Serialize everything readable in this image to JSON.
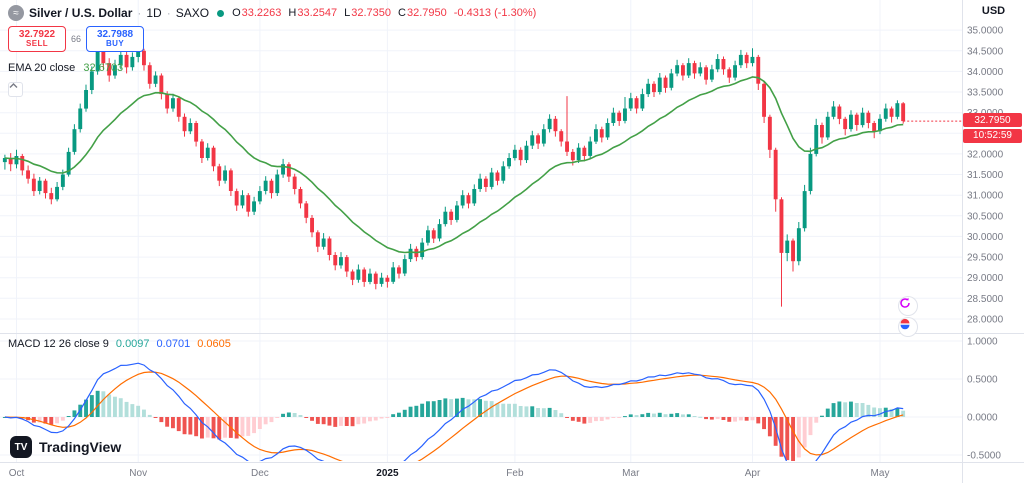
{
  "header": {
    "symbol_title": "Silver / U.S. Dollar",
    "separator": "·",
    "timeframe": "1D",
    "exchange": "SAXO",
    "logo_glyph": "≈",
    "ohlc": {
      "o_label": "O",
      "o": "33.2263",
      "h_label": "H",
      "h": "33.2547",
      "l_label": "L",
      "l": "32.7350",
      "c_label": "C",
      "c": "32.7950",
      "change": "-0.4313 (-1.30%)"
    },
    "currency": "USD"
  },
  "trade_panel": {
    "sell_price": "32.7922",
    "sell_label": "SELL",
    "spread": "66",
    "buy_price": "32.7988",
    "buy_label": "BUY"
  },
  "ema_legend": {
    "name": "EMA 20 close",
    "value": "32.6703"
  },
  "macd_legend": {
    "name": "MACD 12 26 close 9",
    "hist_value": "0.0097",
    "macd_value": "0.0701",
    "signal_value": "0.0605"
  },
  "price_scale": {
    "ticks": [
      {
        "v": 35.0,
        "label": "35.0000"
      },
      {
        "v": 34.5,
        "label": "34.5000"
      },
      {
        "v": 34.0,
        "label": "34.0000"
      },
      {
        "v": 33.5,
        "label": "33.5000"
      },
      {
        "v": 33.0,
        "label": "33.0000"
      },
      {
        "v": 32.5,
        "label": "32.5000"
      },
      {
        "v": 32.0,
        "label": "32.0000"
      },
      {
        "v": 31.5,
        "label": "31.5000"
      },
      {
        "v": 31.0,
        "label": "31.0000"
      },
      {
        "v": 30.5,
        "label": "30.5000"
      },
      {
        "v": 30.0,
        "label": "30.0000"
      },
      {
        "v": 29.5,
        "label": "29.5000"
      },
      {
        "v": 29.0,
        "label": "29.0000"
      },
      {
        "v": 28.5,
        "label": "28.5000"
      },
      {
        "v": 28.0,
        "label": "28.0000"
      }
    ],
    "last_price": "32.7950",
    "countdown": "10:52:59"
  },
  "macd_scale": {
    "ticks": [
      {
        "v": 1.0,
        "label": "1.0000"
      },
      {
        "v": 0.5,
        "label": "0.5000"
      },
      {
        "v": 0.0,
        "label": "0.0000"
      },
      {
        "v": -0.5,
        "label": "-0.5000"
      }
    ]
  },
  "time_axis": {
    "labels": [
      {
        "index": 2,
        "label": "Oct",
        "year": false
      },
      {
        "index": 23,
        "label": "Nov",
        "year": false
      },
      {
        "index": 44,
        "label": "Dec",
        "year": false
      },
      {
        "index": 66,
        "label": "2025",
        "year": true
      },
      {
        "index": 88,
        "label": "Feb",
        "year": false
      },
      {
        "index": 108,
        "label": "Mar",
        "year": false
      },
      {
        "index": 129,
        "label": "Apr",
        "year": false
      },
      {
        "index": 151,
        "label": "May",
        "year": false
      }
    ]
  },
  "logo": {
    "text": "TradingView",
    "mark": "TV"
  },
  "colors": {
    "up": "#089981",
    "down": "#f23645",
    "ema": "#43a047",
    "macd_line": "#2962ff",
    "signal_line": "#ff6d00",
    "hist_pos": "#26a69a",
    "hist_pos_weak": "#b2dfdb",
    "hist_neg": "#ef5350",
    "hist_neg_weak": "#ffcdd2",
    "grid": "#f0f3fa",
    "axis_text": "#787b86",
    "divider": "#e0e3eb",
    "last_price_bg": "#f23645"
  },
  "chart_data": {
    "type": "candlestick",
    "title": "Silver / U.S. Dollar · 1D · SAXO",
    "timeframe": "1D",
    "price_axis_range": [
      27.66,
      35.73
    ],
    "macd_axis_range": [
      -0.592,
      1.105
    ],
    "overlays": [
      {
        "name": "EMA",
        "length": 20
      }
    ],
    "indicator": {
      "type": "MACD",
      "fast": 12,
      "slow": 26,
      "signal": 9
    },
    "candles": [
      [
        31.8,
        31.98,
        31.62,
        31.9
      ],
      [
        31.9,
        32.02,
        31.58,
        31.75
      ],
      [
        31.75,
        32.1,
        31.65,
        31.95
      ],
      [
        31.95,
        32.0,
        31.48,
        31.6
      ],
      [
        31.6,
        31.72,
        31.28,
        31.4
      ],
      [
        31.4,
        31.52,
        30.98,
        31.1
      ],
      [
        31.1,
        31.44,
        31.02,
        31.35
      ],
      [
        31.35,
        31.4,
        30.92,
        31.05
      ],
      [
        31.05,
        31.18,
        30.78,
        30.9
      ],
      [
        30.9,
        31.32,
        30.85,
        31.2
      ],
      [
        31.2,
        31.62,
        31.12,
        31.5
      ],
      [
        31.5,
        32.15,
        31.45,
        32.05
      ],
      [
        32.05,
        32.72,
        31.98,
        32.6
      ],
      [
        32.6,
        33.22,
        32.52,
        33.1
      ],
      [
        33.1,
        33.68,
        33.02,
        33.55
      ],
      [
        33.55,
        34.12,
        33.45,
        34.0
      ],
      [
        34.0,
        34.87,
        33.92,
        34.55
      ],
      [
        34.55,
        34.62,
        34.05,
        34.2
      ],
      [
        34.2,
        34.32,
        33.75,
        33.9
      ],
      [
        33.9,
        34.28,
        33.82,
        34.15
      ],
      [
        34.15,
        34.52,
        34.05,
        34.4
      ],
      [
        34.4,
        34.48,
        33.95,
        34.1
      ],
      [
        34.1,
        34.46,
        34.02,
        34.35
      ],
      [
        34.35,
        34.6,
        34.22,
        34.5
      ],
      [
        34.5,
        34.55,
        34.02,
        34.15
      ],
      [
        34.15,
        34.22,
        33.58,
        33.7
      ],
      [
        33.7,
        34.0,
        33.62,
        33.9
      ],
      [
        33.9,
        33.95,
        33.32,
        33.45
      ],
      [
        33.45,
        33.52,
        32.98,
        33.1
      ],
      [
        33.1,
        33.46,
        33.02,
        33.35
      ],
      [
        33.35,
        33.4,
        32.78,
        32.9
      ],
      [
        32.9,
        32.98,
        32.42,
        32.55
      ],
      [
        32.55,
        32.86,
        32.48,
        32.75
      ],
      [
        32.75,
        32.8,
        32.18,
        32.3
      ],
      [
        32.3,
        32.36,
        31.78,
        31.9
      ],
      [
        31.9,
        32.26,
        31.84,
        32.15
      ],
      [
        32.15,
        32.2,
        31.58,
        31.7
      ],
      [
        31.7,
        31.76,
        31.22,
        31.35
      ],
      [
        31.35,
        31.72,
        31.28,
        31.6
      ],
      [
        31.6,
        31.65,
        30.98,
        31.1
      ],
      [
        31.1,
        31.16,
        30.62,
        30.75
      ],
      [
        30.75,
        31.12,
        30.68,
        31.0
      ],
      [
        31.0,
        31.05,
        30.48,
        30.6
      ],
      [
        30.6,
        30.96,
        30.52,
        30.85
      ],
      [
        30.85,
        31.22,
        30.78,
        31.1
      ],
      [
        31.1,
        31.46,
        31.02,
        31.35
      ],
      [
        31.35,
        31.4,
        30.92,
        31.05
      ],
      [
        31.05,
        31.62,
        30.98,
        31.5
      ],
      [
        31.5,
        31.88,
        31.42,
        31.75
      ],
      [
        31.75,
        31.8,
        31.32,
        31.45
      ],
      [
        31.45,
        31.52,
        31.02,
        31.15
      ],
      [
        31.15,
        31.2,
        30.68,
        30.8
      ],
      [
        30.8,
        30.86,
        30.32,
        30.45
      ],
      [
        30.45,
        30.52,
        29.98,
        30.1
      ],
      [
        30.1,
        30.15,
        29.62,
        29.75
      ],
      [
        29.75,
        30.08,
        29.68,
        29.95
      ],
      [
        29.95,
        30.0,
        29.42,
        29.55
      ],
      [
        29.55,
        29.62,
        29.18,
        29.3
      ],
      [
        29.3,
        29.62,
        29.22,
        29.5
      ],
      [
        29.5,
        29.55,
        29.02,
        29.15
      ],
      [
        29.15,
        29.2,
        28.82,
        28.95
      ],
      [
        28.95,
        29.32,
        28.88,
        29.2
      ],
      [
        29.2,
        29.25,
        28.78,
        28.9
      ],
      [
        28.9,
        29.22,
        28.84,
        29.1
      ],
      [
        29.1,
        29.15,
        28.72,
        28.85
      ],
      [
        28.85,
        29.12,
        28.78,
        29.0
      ],
      [
        29.0,
        29.06,
        28.76,
        28.9
      ],
      [
        28.9,
        29.38,
        28.85,
        29.25
      ],
      [
        29.25,
        29.3,
        28.98,
        29.1
      ],
      [
        29.1,
        29.56,
        29.04,
        29.45
      ],
      [
        29.45,
        29.82,
        29.38,
        29.7
      ],
      [
        29.7,
        29.76,
        29.4,
        29.5
      ],
      [
        29.5,
        29.96,
        29.44,
        29.85
      ],
      [
        29.85,
        30.26,
        29.78,
        30.15
      ],
      [
        30.15,
        30.2,
        29.84,
        29.95
      ],
      [
        29.95,
        30.42,
        29.88,
        30.3
      ],
      [
        30.3,
        30.72,
        30.24,
        30.6
      ],
      [
        30.6,
        30.66,
        30.28,
        30.4
      ],
      [
        30.4,
        30.86,
        30.34,
        30.75
      ],
      [
        30.75,
        31.12,
        30.68,
        31.0
      ],
      [
        31.0,
        31.06,
        30.68,
        30.8
      ],
      [
        30.8,
        31.26,
        30.74,
        31.15
      ],
      [
        31.15,
        31.52,
        31.08,
        31.4
      ],
      [
        31.4,
        31.46,
        31.08,
        31.2
      ],
      [
        31.2,
        31.66,
        31.14,
        31.55
      ],
      [
        31.55,
        31.6,
        31.24,
        31.35
      ],
      [
        31.35,
        31.82,
        31.28,
        31.7
      ],
      [
        31.7,
        32.02,
        31.64,
        31.9
      ],
      [
        31.9,
        32.22,
        31.84,
        32.1
      ],
      [
        32.1,
        32.16,
        31.72,
        31.85
      ],
      [
        31.85,
        32.32,
        31.78,
        32.2
      ],
      [
        32.2,
        32.56,
        32.12,
        32.45
      ],
      [
        32.45,
        32.5,
        32.12,
        32.25
      ],
      [
        32.25,
        32.72,
        32.18,
        32.6
      ],
      [
        32.6,
        32.96,
        32.52,
        32.85
      ],
      [
        32.85,
        32.92,
        32.42,
        32.55
      ],
      [
        32.55,
        32.6,
        32.18,
        32.3
      ],
      [
        32.3,
        33.4,
        31.95,
        32.05
      ],
      [
        32.05,
        32.12,
        31.72,
        31.85
      ],
      [
        31.85,
        32.26,
        31.78,
        32.15
      ],
      [
        32.15,
        32.2,
        31.82,
        31.95
      ],
      [
        31.95,
        32.42,
        31.88,
        32.3
      ],
      [
        32.3,
        32.72,
        32.24,
        32.6
      ],
      [
        32.6,
        32.66,
        32.28,
        32.4
      ],
      [
        32.4,
        32.86,
        32.34,
        32.75
      ],
      [
        32.75,
        33.12,
        32.68,
        33.0
      ],
      [
        33.0,
        33.05,
        32.68,
        32.8
      ],
      [
        32.8,
        33.38,
        32.74,
        33.1
      ],
      [
        33.1,
        33.48,
        33.04,
        33.35
      ],
      [
        33.35,
        33.4,
        32.98,
        33.1
      ],
      [
        33.1,
        33.58,
        33.04,
        33.45
      ],
      [
        33.45,
        33.82,
        33.38,
        33.7
      ],
      [
        33.7,
        33.76,
        33.38,
        33.5
      ],
      [
        33.5,
        33.96,
        33.44,
        33.85
      ],
      [
        33.85,
        33.9,
        33.48,
        33.6
      ],
      [
        33.6,
        34.06,
        33.54,
        33.95
      ],
      [
        33.95,
        34.28,
        33.88,
        34.15
      ],
      [
        34.15,
        34.2,
        33.78,
        33.9
      ],
      [
        33.9,
        34.32,
        33.84,
        34.2
      ],
      [
        34.2,
        34.26,
        33.82,
        33.95
      ],
      [
        33.95,
        34.22,
        33.88,
        34.1
      ],
      [
        34.1,
        34.15,
        33.68,
        33.8
      ],
      [
        33.8,
        34.16,
        33.74,
        34.05
      ],
      [
        34.05,
        34.42,
        33.98,
        34.3
      ],
      [
        34.3,
        34.36,
        33.92,
        34.05
      ],
      [
        34.05,
        34.1,
        33.72,
        33.85
      ],
      [
        33.85,
        34.26,
        33.78,
        34.15
      ],
      [
        34.15,
        34.52,
        34.08,
        34.4
      ],
      [
        34.4,
        34.46,
        34.08,
        34.2
      ],
      [
        34.2,
        34.56,
        34.12,
        34.35
      ],
      [
        34.35,
        34.4,
        33.55,
        33.7
      ],
      [
        33.7,
        33.76,
        32.75,
        32.9
      ],
      [
        32.9,
        32.95,
        31.9,
        32.1
      ],
      [
        32.1,
        32.15,
        30.6,
        30.9
      ],
      [
        30.9,
        30.95,
        28.3,
        29.6
      ],
      [
        29.6,
        30.05,
        29.4,
        29.9
      ],
      [
        29.9,
        29.95,
        29.15,
        29.4
      ],
      [
        29.4,
        30.35,
        29.3,
        30.2
      ],
      [
        30.2,
        31.25,
        30.12,
        31.1
      ],
      [
        31.1,
        32.15,
        31.02,
        32.0
      ],
      [
        32.0,
        32.85,
        31.94,
        32.7
      ],
      [
        32.7,
        32.76,
        32.25,
        32.4
      ],
      [
        32.4,
        33.02,
        32.34,
        32.9
      ],
      [
        32.9,
        33.28,
        32.84,
        33.15
      ],
      [
        33.15,
        33.2,
        32.72,
        32.85
      ],
      [
        32.85,
        32.9,
        32.45,
        32.6
      ],
      [
        32.6,
        33.06,
        32.54,
        32.95
      ],
      [
        32.95,
        33.0,
        32.56,
        32.7
      ],
      [
        32.7,
        33.12,
        32.64,
        33.0
      ],
      [
        33.0,
        33.05,
        32.62,
        32.75
      ],
      [
        32.75,
        32.8,
        32.38,
        32.55
      ],
      [
        32.55,
        32.96,
        32.48,
        32.85
      ],
      [
        32.85,
        33.22,
        32.78,
        33.1
      ],
      [
        33.1,
        33.15,
        32.76,
        32.9
      ],
      [
        32.9,
        33.3,
        32.84,
        33.23
      ],
      [
        33.2263,
        33.2547,
        32.735,
        32.795
      ]
    ]
  }
}
